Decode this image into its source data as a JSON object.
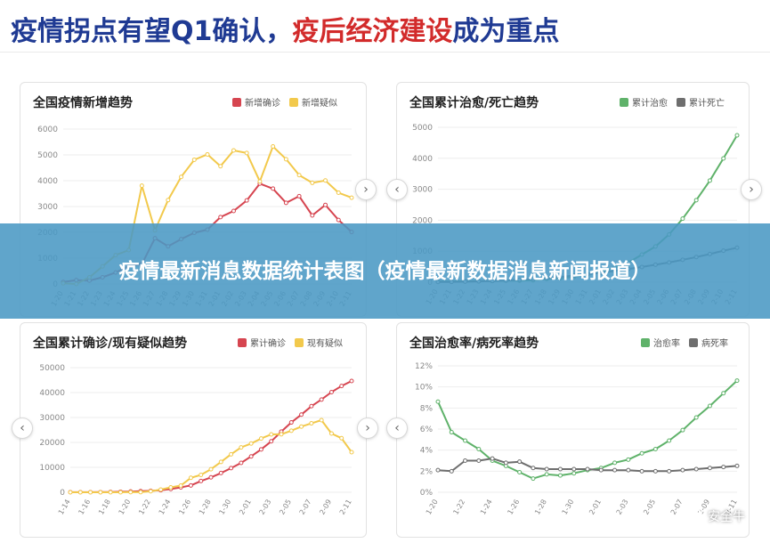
{
  "header": {
    "title_part1": "疫情拐点有望Q1确认，",
    "title_part2": "疫后经济建设",
    "title_part3": "成为重点"
  },
  "banner": {
    "text": "疫情最新消息数据统计表图（疫情最新数据消息新闻报道）"
  },
  "watermark": {
    "text": "安全牛",
    "icon": "wechat-icon"
  },
  "colors": {
    "red": "#d64550",
    "yellow": "#f2c94c",
    "green": "#5fb26a",
    "gray": "#6e6e6e"
  },
  "chart_data": [
    {
      "type": "line",
      "title": "全国疫情新增趋势",
      "ylim": [
        0,
        6000
      ],
      "yticks": [
        "0",
        "1000",
        "2000",
        "3000",
        "4000",
        "5000",
        "6000"
      ],
      "x": [
        "1-20",
        "1-21",
        "1-22",
        "1-23",
        "1-24",
        "1-25",
        "1-26",
        "1-27",
        "1-28",
        "1-29",
        "1-30",
        "1-31",
        "2-01",
        "2-02",
        "2-03",
        "2-04",
        "2-05",
        "2-06",
        "2-07",
        "2-08",
        "2-09",
        "2-10",
        "2-11"
      ],
      "series": [
        {
          "name": "新增确诊",
          "color": "#d64550",
          "values": [
            77,
            149,
            131,
            259,
            444,
            688,
            769,
            1771,
            1459,
            1737,
            1982,
            2102,
            2590,
            2829,
            3235,
            3887,
            3694,
            3143,
            3399,
            2656,
            3062,
            2478,
            2015
          ]
        },
        {
          "name": "新增疑似",
          "color": "#f2c94c",
          "values": [
            27,
            0,
            257,
            680,
            1118,
            1309,
            3806,
            2077,
            3248,
            4148,
            4812,
            5019,
            4562,
            5173,
            5072,
            3971,
            5328,
            4833,
            4214,
            3916,
            4008,
            3536,
            3342
          ]
        }
      ]
    },
    {
      "type": "line",
      "title": "全国累计治愈/死亡趋势",
      "ylim": [
        0,
        5000
      ],
      "yticks": [
        "0",
        "1000",
        "2000",
        "3000",
        "4000",
        "5000"
      ],
      "x": [
        "1-20",
        "1-21",
        "1-22",
        "1-23",
        "1-24",
        "1-25",
        "1-26",
        "1-27",
        "1-28",
        "1-29",
        "1-30",
        "1-31",
        "2-01",
        "2-02",
        "2-03",
        "2-04",
        "2-05",
        "2-06",
        "2-07",
        "2-08",
        "2-09",
        "2-10",
        "2-11"
      ],
      "series": [
        {
          "name": "累计治愈",
          "color": "#5fb26a",
          "values": [
            25,
            25,
            28,
            34,
            38,
            49,
            51,
            60,
            103,
            124,
            171,
            243,
            328,
            475,
            632,
            892,
            1153,
            1540,
            2050,
            2649,
            3281,
            3996,
            4740
          ]
        },
        {
          "name": "累计死亡",
          "color": "#6e6e6e",
          "values": [
            6,
            9,
            17,
            25,
            41,
            56,
            80,
            106,
            132,
            170,
            213,
            259,
            304,
            361,
            425,
            490,
            563,
            636,
            722,
            811,
            908,
            1016,
            1113
          ]
        }
      ]
    },
    {
      "type": "line",
      "title": "全国累计确诊/现有疑似趋势",
      "ylim": [
        0,
        50000
      ],
      "yticks": [
        "0",
        "10000",
        "20000",
        "30000",
        "40000",
        "50000"
      ],
      "x": [
        "1-14",
        "1-15",
        "1-16",
        "1-17",
        "1-18",
        "1-19",
        "1-20",
        "1-21",
        "1-22",
        "1-23",
        "1-24",
        "1-25",
        "1-26",
        "1-27",
        "1-28",
        "1-29",
        "1-30",
        "1-31",
        "2-01",
        "2-02",
        "2-03",
        "2-04",
        "2-05",
        "2-06",
        "2-07",
        "2-08",
        "2-09",
        "2-10",
        "2-11"
      ],
      "xticks": [
        "1-14",
        "1-16",
        "1-18",
        "1-20",
        "1-22",
        "1-24",
        "1-26",
        "1-28",
        "1-30",
        "2-01",
        "2-03",
        "2-05",
        "2-07",
        "2-09",
        "2-11"
      ],
      "series": [
        {
          "name": "累计确诊",
          "color": "#d64550",
          "values": [
            41,
            41,
            45,
            62,
            121,
            198,
            291,
            440,
            571,
            830,
            1287,
            1975,
            2744,
            4515,
            5974,
            7711,
            9692,
            11791,
            14380,
            17205,
            20438,
            24324,
            28018,
            31161,
            34546,
            37198,
            40171,
            42638,
            44653
          ]
        },
        {
          "name": "现有疑似",
          "color": "#f2c94c",
          "values": [
            0,
            0,
            0,
            0,
            0,
            0,
            54,
            37,
            393,
            1072,
            1965,
            2684,
            5794,
            6973,
            9239,
            12167,
            15238,
            17988,
            19544,
            21558,
            23214,
            23260,
            24702,
            26359,
            27657,
            28942,
            23589,
            21675,
            16067
          ]
        }
      ]
    },
    {
      "type": "line",
      "title": "全国治愈率/病死率趋势",
      "ylim": [
        0,
        12
      ],
      "yticks": [
        "0%",
        "2%",
        "4%",
        "6%",
        "8%",
        "10%",
        "12%"
      ],
      "x": [
        "1-20",
        "1-21",
        "1-22",
        "1-23",
        "1-24",
        "1-25",
        "1-26",
        "1-27",
        "1-28",
        "1-29",
        "1-30",
        "1-31",
        "2-01",
        "2-02",
        "2-03",
        "2-04",
        "2-05",
        "2-06",
        "2-07",
        "2-08",
        "2-09",
        "2-10",
        "2-11"
      ],
      "xticks": [
        "1-20",
        "1-22",
        "1-24",
        "1-26",
        "1-28",
        "1-30",
        "2-01",
        "2-03",
        "2-05",
        "2-07",
        "2-09",
        "2-11"
      ],
      "series": [
        {
          "name": "治愈率",
          "color": "#5fb26a",
          "values": [
            8.6,
            5.7,
            4.9,
            4.1,
            3.0,
            2.5,
            1.9,
            1.3,
            1.7,
            1.6,
            1.8,
            2.1,
            2.3,
            2.8,
            3.1,
            3.7,
            4.1,
            4.9,
            5.9,
            7.1,
            8.2,
            9.4,
            10.6
          ]
        },
        {
          "name": "病死率",
          "color": "#6e6e6e",
          "values": [
            2.1,
            2.0,
            3.0,
            3.0,
            3.2,
            2.8,
            2.9,
            2.3,
            2.2,
            2.2,
            2.2,
            2.2,
            2.1,
            2.1,
            2.1,
            2.0,
            2.0,
            2.0,
            2.1,
            2.2,
            2.3,
            2.4,
            2.5
          ]
        }
      ]
    }
  ]
}
